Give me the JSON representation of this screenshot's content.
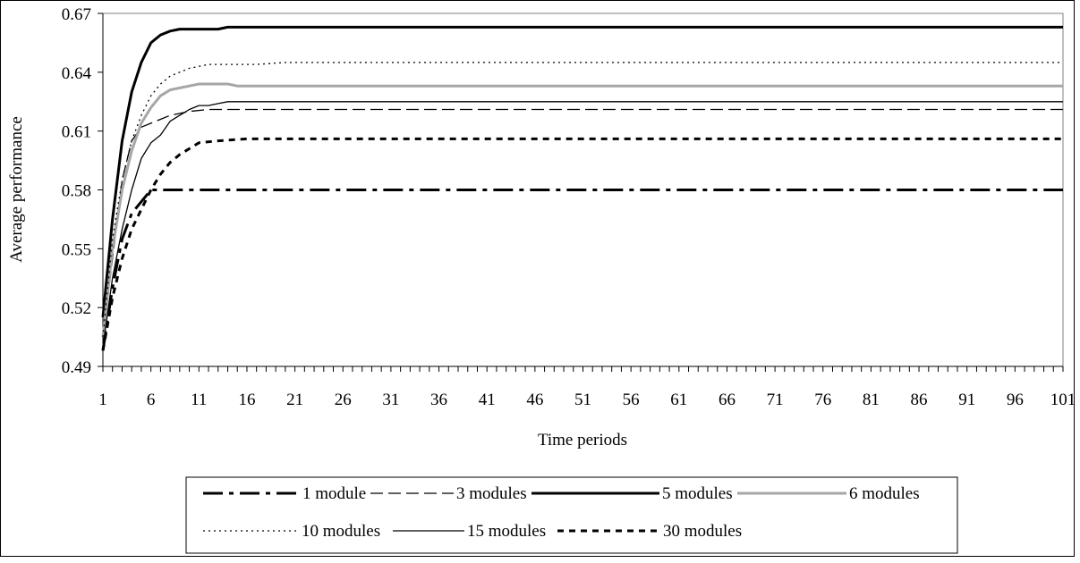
{
  "chart_data": {
    "type": "line",
    "title": "",
    "xlabel": "Time periods",
    "ylabel": "Average performance",
    "xlim": [
      1,
      101
    ],
    "ylim": [
      0.49,
      0.67
    ],
    "x_tick_labels": [
      "1",
      "6",
      "11",
      "16",
      "21",
      "26",
      "31",
      "36",
      "41",
      "46",
      "51",
      "56",
      "61",
      "66",
      "71",
      "76",
      "81",
      "86",
      "91",
      "96",
      "101"
    ],
    "y_tick_labels": [
      "0.49",
      "0.52",
      "0.55",
      "0.58",
      "0.61",
      "0.64",
      "0.67"
    ],
    "grid": false,
    "legend_position": "bottom",
    "series": [
      {
        "name": "1 module",
        "x": [
          1,
          2,
          3,
          4,
          5,
          6,
          101
        ],
        "y": [
          0.498,
          0.53,
          0.555,
          0.568,
          0.574,
          0.58,
          0.58
        ]
      },
      {
        "name": "3 modules",
        "x": [
          1,
          2,
          3,
          4,
          5,
          6,
          7,
          8,
          10,
          12,
          14,
          101
        ],
        "y": [
          0.505,
          0.545,
          0.585,
          0.605,
          0.612,
          0.614,
          0.616,
          0.618,
          0.62,
          0.621,
          0.621,
          0.621
        ]
      },
      {
        "name": "5 modules",
        "x": [
          1,
          2,
          3,
          4,
          5,
          6,
          7,
          8,
          9,
          10,
          11,
          12,
          13,
          14,
          101
        ],
        "y": [
          0.515,
          0.565,
          0.605,
          0.63,
          0.645,
          0.655,
          0.659,
          0.661,
          0.662,
          0.662,
          0.662,
          0.662,
          0.662,
          0.663,
          0.663
        ]
      },
      {
        "name": "6 modules",
        "x": [
          1,
          2,
          3,
          4,
          5,
          6,
          7,
          8,
          9,
          10,
          11,
          12,
          13,
          14,
          15,
          101
        ],
        "y": [
          0.505,
          0.55,
          0.58,
          0.6,
          0.614,
          0.622,
          0.628,
          0.631,
          0.632,
          0.633,
          0.634,
          0.634,
          0.634,
          0.634,
          0.633,
          0.633
        ]
      },
      {
        "name": "10 modules",
        "x": [
          1,
          2,
          3,
          4,
          5,
          6,
          7,
          8,
          9,
          10,
          11,
          12,
          14,
          17,
          20,
          101
        ],
        "y": [
          0.505,
          0.555,
          0.585,
          0.605,
          0.618,
          0.628,
          0.634,
          0.638,
          0.64,
          0.642,
          0.643,
          0.644,
          0.644,
          0.644,
          0.645,
          0.645
        ]
      },
      {
        "name": "15 modules",
        "x": [
          1,
          2,
          3,
          4,
          5,
          6,
          7,
          8,
          9,
          10,
          11,
          12,
          13,
          14,
          101
        ],
        "y": [
          0.5,
          0.535,
          0.56,
          0.58,
          0.596,
          0.604,
          0.608,
          0.615,
          0.618,
          0.621,
          0.623,
          0.623,
          0.624,
          0.625,
          0.625
        ]
      },
      {
        "name": "30 modules",
        "x": [
          1,
          2,
          3,
          4,
          5,
          6,
          7,
          8,
          9,
          10,
          11,
          13,
          16,
          20,
          101
        ],
        "y": [
          0.498,
          0.525,
          0.545,
          0.56,
          0.57,
          0.58,
          0.588,
          0.594,
          0.598,
          0.601,
          0.604,
          0.605,
          0.606,
          0.606,
          0.606
        ]
      }
    ]
  },
  "styles": {
    "1 module": {
      "color": "#000000",
      "dash": "dash-dot-long",
      "weight": "bold"
    },
    "3 modules": {
      "color": "#000000",
      "dash": "dash",
      "weight": "thin"
    },
    "5 modules": {
      "color": "#000000",
      "dash": "solid",
      "weight": "bold"
    },
    "6 modules": {
      "color": "#a6a6a6",
      "dash": "solid",
      "weight": "bold"
    },
    "10 modules": {
      "color": "#000000",
      "dash": "dot",
      "weight": "thin"
    },
    "15 modules": {
      "color": "#000000",
      "dash": "solid",
      "weight": "thin"
    },
    "30 modules": {
      "color": "#000000",
      "dash": "square-dash",
      "weight": "bold"
    }
  }
}
